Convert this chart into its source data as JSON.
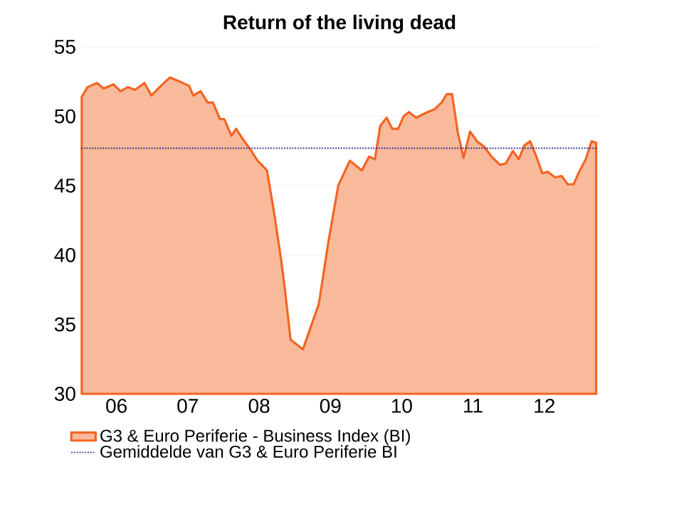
{
  "chart_data": {
    "type": "area",
    "title": "Return of the living dead",
    "x": [
      "2006-01-04",
      "2006-02-03",
      "2006-03-23",
      "2006-04-26",
      "2006-06-16",
      "2006-07-22",
      "2006-08-28",
      "2006-10-04",
      "2006-11-21",
      "2006-12-27",
      "2007-02-14",
      "2007-04-01",
      "2007-05-21",
      "2007-07-08",
      "2007-07-29",
      "2007-09-05",
      "2007-10-11",
      "2007-11-07",
      "2007-12-13",
      "2008-01-04",
      "2008-02-10",
      "2008-03-05",
      "2008-04-11",
      "2008-05-17",
      "2008-06-23",
      "2008-08-10",
      "2008-09-16",
      "2008-10-22",
      "2008-11-10",
      "2008-12-09",
      "2009-02-10",
      "2009-03-27",
      "2009-05-03",
      "2009-05-14",
      "2009-06-20",
      "2009-08-10",
      "2009-10-08",
      "2009-12-09",
      "2010-01-15",
      "2010-02-14",
      "2010-03-13",
      "2010-04-15",
      "2010-05-14",
      "2010-06-13",
      "2010-07-11",
      "2010-08-07",
      "2010-09-13",
      "2010-11-10",
      "2010-12-16",
      "2011-01-22",
      "2011-02-17",
      "2011-03-16",
      "2011-04-15",
      "2011-05-14",
      "2011-06-16",
      "2011-07-22",
      "2011-08-28",
      "2011-10-04",
      "2011-11-17",
      "2011-12-16",
      "2012-01-22",
      "2012-02-21",
      "2012-03-20",
      "2012-04-19",
      "2012-05-21",
      "2012-06-20",
      "2012-07-19",
      "2012-08-25",
      "2012-09-27",
      "2012-10-29",
      "2012-11-28",
      "2012-12-23",
      "2013-01-29",
      "2013-02-28",
      "2013-03-23"
    ],
    "series": [
      {
        "name": "G3 & Euro Periferie - Business Index (BI)",
        "color": "#f26522",
        "values": [
          51.4,
          52.1,
          52.4,
          52.0,
          52.3,
          51.8,
          52.1,
          51.9,
          52.4,
          51.5,
          52.2,
          52.8,
          52.5,
          52.2,
          51.5,
          51.8,
          51.0,
          51.0,
          49.8,
          49.8,
          48.6,
          49.1,
          48.3,
          47.6,
          46.8,
          46.1,
          43.0,
          39.6,
          37.5,
          33.9,
          33.2,
          35.0,
          36.5,
          37.5,
          40.9,
          45.0,
          46.8,
          46.1,
          47.1,
          46.9,
          49.3,
          49.9,
          49.1,
          49.1,
          50.0,
          50.3,
          49.9,
          50.3,
          50.5,
          51.0,
          51.6,
          51.6,
          48.8,
          47.0,
          48.9,
          48.2,
          47.8,
          47.1,
          46.5,
          46.6,
          47.5,
          46.9,
          47.9,
          48.2,
          47.1,
          45.9,
          46.0,
          45.6,
          45.7,
          45.1,
          45.1,
          45.9,
          46.9,
          48.2,
          48.1
        ]
      }
    ],
    "xlim": [
      "2006-01-01",
      "2013-04-01"
    ],
    "xticks": [
      {
        "value": "2006-07-01",
        "label": "06"
      },
      {
        "value": "2007-07-01",
        "label": "07"
      },
      {
        "value": "2008-07-01",
        "label": "08"
      },
      {
        "value": "2009-07-01",
        "label": "09"
      },
      {
        "value": "2010-07-01",
        "label": "10"
      },
      {
        "value": "2011-07-01",
        "label": "11"
      },
      {
        "value": "2012-07-01",
        "label": "12"
      },
      {
        "value": "2007-01-01",
        "label": null
      },
      {
        "value": "2008-01-01",
        "label": null
      },
      {
        "value": "2009-01-01",
        "label": null
      },
      {
        "value": "2010-01-01",
        "label": null
      },
      {
        "value": "2011-01-01",
        "label": null
      },
      {
        "value": "2012-01-01",
        "label": null
      },
      {
        "value": "2013-01-01",
        "label": null
      }
    ],
    "ylim": [
      30,
      55
    ],
    "yticks": [
      30,
      35,
      40,
      45,
      50,
      55
    ],
    "ref_lines": [
      {
        "axis": "y",
        "value": 47.7,
        "label": "Gemiddelde van G3 & Euro Periferie BI",
        "color": "#2b2b8c",
        "line_style": "dotted"
      }
    ],
    "grid": "y",
    "legend": "bottom"
  }
}
